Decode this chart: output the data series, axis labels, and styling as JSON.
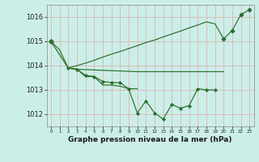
{
  "title": "Graphe pression niveau de la mer (hPa)",
  "hours": [
    0,
    1,
    2,
    3,
    4,
    5,
    6,
    7,
    8,
    9,
    10,
    11,
    12,
    13,
    14,
    15,
    16,
    17,
    18,
    19,
    20,
    21,
    22,
    23
  ],
  "ylim": [
    1011.5,
    1016.5
  ],
  "yticks": [
    1012,
    1013,
    1014,
    1015,
    1016
  ],
  "background_color": "#cceee8",
  "grid_color": "#ddaaaa",
  "line_color": "#2a6e2a",
  "figsize": [
    3.2,
    2.0
  ],
  "dpi": 100,
  "line1_x": [
    0,
    1,
    2,
    3,
    4,
    5,
    6,
    7,
    8,
    9,
    10
  ],
  "line1_y": [
    1015.0,
    1014.65,
    1013.9,
    1013.85,
    1013.55,
    1013.55,
    1013.2,
    1013.2,
    1013.15,
    1013.05,
    1013.05
  ],
  "line2_x": [
    2,
    3,
    4,
    5,
    6,
    7,
    8,
    9,
    10,
    11,
    12,
    13,
    14,
    15,
    16,
    17,
    18,
    19
  ],
  "line2_y": [
    1013.9,
    1013.85,
    1013.6,
    1013.55,
    1013.35,
    1013.3,
    1013.3,
    1013.05,
    1012.05,
    1012.55,
    1012.05,
    1011.8,
    1012.4,
    1012.25,
    1012.35,
    1013.05,
    1013.0,
    1013.0
  ],
  "line3_x": [
    0,
    2,
    3,
    4,
    5,
    6,
    7,
    8,
    9,
    10,
    11,
    12,
    13,
    14,
    15,
    16,
    17,
    18,
    19,
    20,
    21,
    22,
    23
  ],
  "line3_y": [
    1015.0,
    1013.9,
    1014.0,
    1014.1,
    1014.22,
    1014.35,
    1014.47,
    1014.58,
    1014.7,
    1014.82,
    1014.95,
    1015.05,
    1015.18,
    1015.3,
    1015.42,
    1015.55,
    1015.67,
    1015.8,
    1015.72,
    1015.1,
    1015.45,
    1016.1,
    1016.3
  ],
  "line4_x": [
    2,
    3,
    10,
    19,
    20
  ],
  "line4_y": [
    1013.9,
    1013.85,
    1013.75,
    1013.75,
    1013.75
  ]
}
